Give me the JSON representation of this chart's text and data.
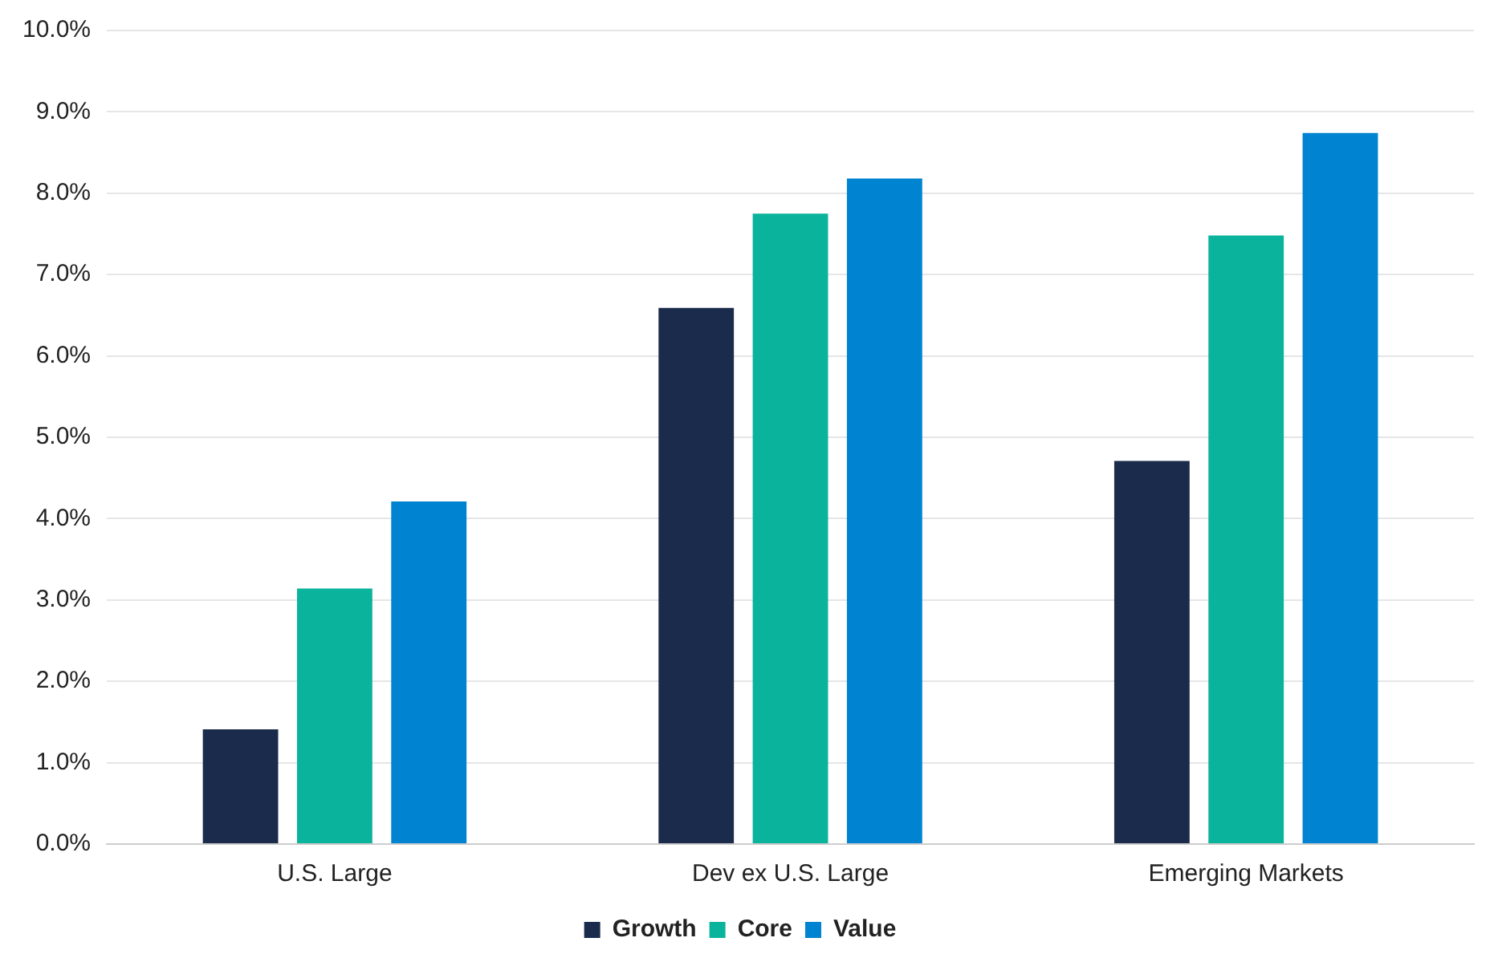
{
  "chart_data": {
    "type": "bar",
    "categories": [
      "U.S. Large",
      "Dev ex U.S. Large",
      "Emerging Markets"
    ],
    "series": [
      {
        "name": "Growth",
        "color": "#1a2b4c",
        "values": [
          1.41,
          6.59,
          4.71
        ]
      },
      {
        "name": "Core",
        "color": "#0ab39c",
        "values": [
          3.14,
          7.75,
          7.48
        ]
      },
      {
        "name": "Value",
        "color": "#0083d0",
        "values": [
          4.21,
          8.18,
          8.74
        ]
      }
    ],
    "ylim": [
      0,
      10
    ],
    "yticks": [
      {
        "value": 0,
        "label": "0.0%"
      },
      {
        "value": 1,
        "label": "1.0%"
      },
      {
        "value": 2,
        "label": "2.0%"
      },
      {
        "value": 3,
        "label": "3.0%"
      },
      {
        "value": 4,
        "label": "4.0%"
      },
      {
        "value": 5,
        "label": "5.0%"
      },
      {
        "value": 6,
        "label": "6.0%"
      },
      {
        "value": 7,
        "label": "7.0%"
      },
      {
        "value": 8,
        "label": "8.0%"
      },
      {
        "value": 9,
        "label": "9.0%"
      },
      {
        "value": 10,
        "label": "10.0%"
      }
    ],
    "grid": "y",
    "legend": "bottom"
  }
}
